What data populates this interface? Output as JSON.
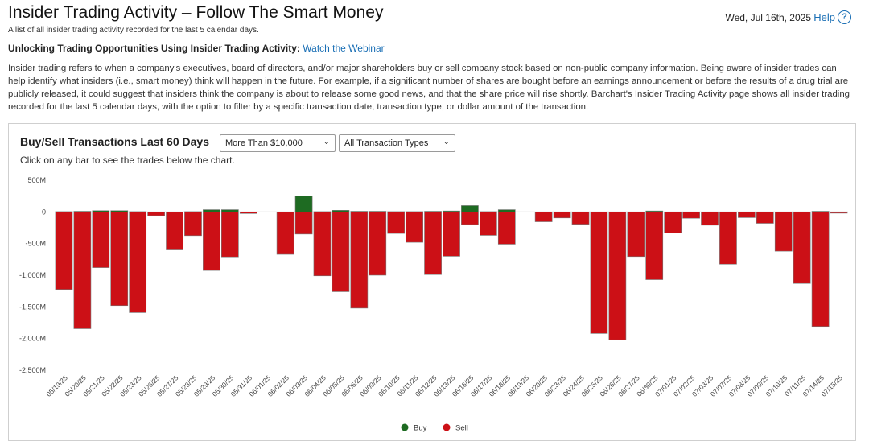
{
  "header": {
    "title": "Insider Trading Activity – Follow The Smart Money",
    "subtitle": "A list of all insider trading activity recorded for the last 5 calendar days.",
    "date": "Wed, Jul 16th, 2025",
    "help_label": "Help",
    "help_icon_glyph": "?"
  },
  "intro": {
    "unlock_label": "Unlocking Trading Opportunities Using Insider Trading Activity:",
    "webinar_link": "Watch the Webinar",
    "description": "Insider trading refers to when a company's executives, board of directors, and/or major shareholders buy or sell company stock based on non-public company information. Being aware of insider trades can help identify what insiders (i.e., smart money) think will happen in the future. For example, if a significant number of shares are bought before an earnings announcement or before the results of a drug trial are publicly released, it could suggest that insiders think the company is about to release some good news, and that the share price will rise shortly. Barchart's Insider Trading Activity page shows all insider trading recorded for the last 5 calendar days, with the option to filter by a specific transaction date, transaction type, or dollar amount of the transaction."
  },
  "chart_panel": {
    "title": "Buy/Sell Transactions Last 60 Days",
    "amount_filter": "More Than $10,000",
    "type_filter": "All Transaction Types",
    "hint": "Click on any bar to see the trades below the chart.",
    "chevron_glyph": "⌄"
  },
  "chart_data": {
    "type": "bar",
    "title": "Buy/Sell Transactions Last 60 Days",
    "unit": "M",
    "ylim": [
      -2500,
      500
    ],
    "yticks": [
      500,
      0,
      -500,
      -1000,
      -1500,
      -2000,
      -2500
    ],
    "ytick_labels": [
      "500M",
      "0",
      "-500M",
      "-1,000M",
      "-1,500M",
      "-2,000M",
      "-2,500M"
    ],
    "grid": false,
    "legend_position": "bottom-center",
    "categories": [
      "05/19/25",
      "05/20/25",
      "05/21/25",
      "05/22/25",
      "05/23/25",
      "05/26/25",
      "05/27/25",
      "05/28/25",
      "05/29/25",
      "05/30/25",
      "05/31/25",
      "06/01/25",
      "06/02/25",
      "06/03/25",
      "06/04/25",
      "06/05/25",
      "06/06/25",
      "06/09/25",
      "06/10/25",
      "06/11/25",
      "06/12/25",
      "06/13/25",
      "06/16/25",
      "06/17/25",
      "06/18/25",
      "06/19/25",
      "06/20/25",
      "06/23/25",
      "06/24/25",
      "06/25/25",
      "06/26/25",
      "06/27/25",
      "06/30/25",
      "07/01/25",
      "07/02/25",
      "07/03/25",
      "07/07/25",
      "07/08/25",
      "07/09/25",
      "07/10/25",
      "07/11/25",
      "07/14/25",
      "07/15/25"
    ],
    "series": [
      {
        "name": "Buy",
        "color": "#1e6b22",
        "values": [
          5,
          10,
          20,
          20,
          5,
          0,
          0,
          5,
          35,
          35,
          0,
          0,
          0,
          250,
          5,
          25,
          10,
          10,
          5,
          5,
          10,
          15,
          100,
          5,
          35,
          0,
          0,
          0,
          0,
          0,
          0,
          0,
          15,
          0,
          0,
          0,
          0,
          0,
          0,
          0,
          0,
          10,
          0
        ]
      },
      {
        "name": "Sell",
        "color": "#cc1016",
        "values": [
          -1225,
          -1845,
          -880,
          -1480,
          -1590,
          -60,
          -600,
          -375,
          -925,
          -710,
          -25,
          0,
          -670,
          -350,
          -1010,
          -1260,
          -1520,
          -1000,
          -340,
          -480,
          -990,
          -700,
          -200,
          -370,
          -510,
          0,
          -155,
          -95,
          -195,
          -1920,
          -2020,
          -705,
          -1070,
          -330,
          -100,
          -210,
          -825,
          -90,
          -180,
          -620,
          -1130,
          -1810,
          -20
        ]
      }
    ]
  }
}
